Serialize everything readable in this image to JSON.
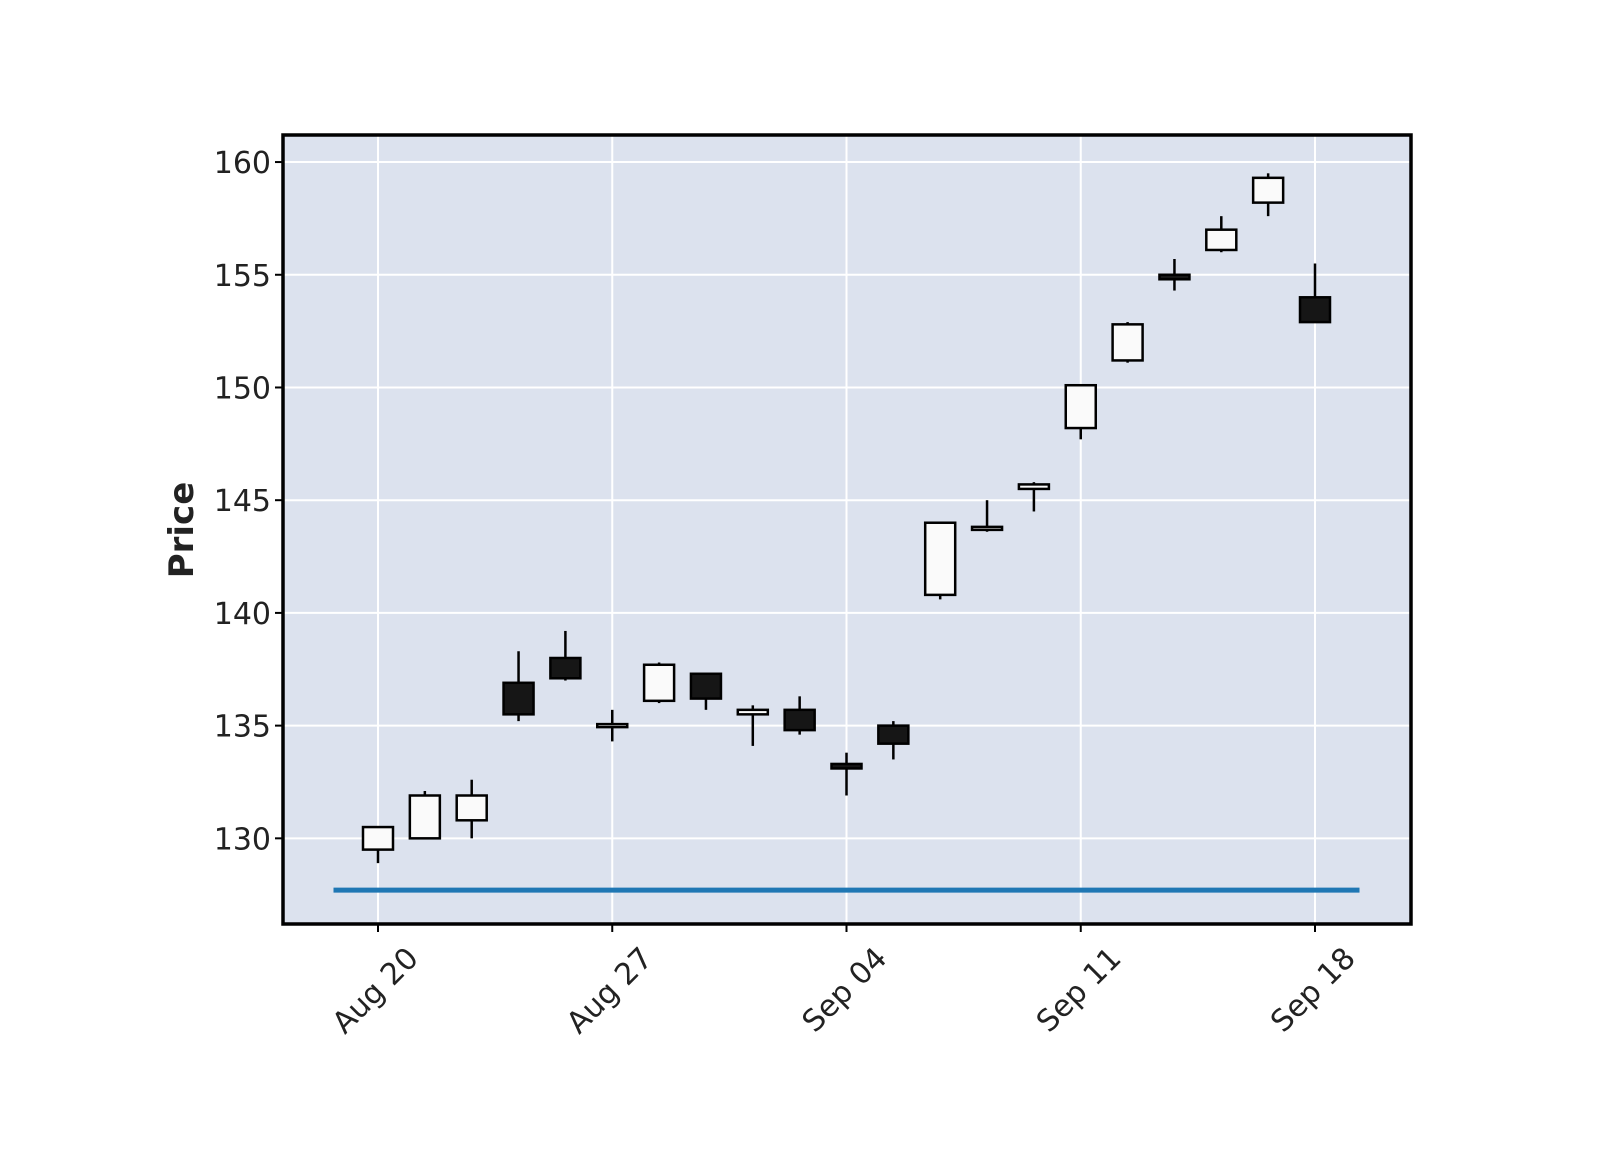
{
  "chart_data": {
    "type": "candlestick",
    "ylabel": "Price",
    "ylim": [
      126.2,
      161.2
    ],
    "yticks": [
      130,
      135,
      140,
      145,
      150,
      155,
      160
    ],
    "xticks": [
      {
        "date": "2023-08-20",
        "label": "Aug 20"
      },
      {
        "date": "2023-08-27",
        "label": "Aug 27"
      },
      {
        "date": "2023-09-04",
        "label": "Sep 04"
      },
      {
        "date": "2023-09-11",
        "label": "Sep 11"
      },
      {
        "date": "2023-09-18",
        "label": "Sep 18"
      }
    ],
    "grid": true,
    "series": [
      {
        "date": "2023-08-20",
        "open": 129.5,
        "high": 130.5,
        "low": 128.9,
        "close": 130.5
      },
      {
        "date": "2023-08-21",
        "open": 130.0,
        "high": 132.1,
        "low": 130.0,
        "close": 131.9
      },
      {
        "date": "2023-08-22",
        "open": 130.8,
        "high": 132.6,
        "low": 130.0,
        "close": 131.9
      },
      {
        "date": "2023-08-23",
        "open": 136.9,
        "high": 138.3,
        "low": 135.2,
        "close": 135.5
      },
      {
        "date": "2023-08-24",
        "open": 138.0,
        "high": 139.2,
        "low": 137.0,
        "close": 137.1
      },
      {
        "date": "2023-08-27",
        "open": 135.0,
        "high": 135.7,
        "low": 134.3,
        "close": 135.0
      },
      {
        "date": "2023-08-28",
        "open": 136.1,
        "high": 137.8,
        "low": 136.0,
        "close": 137.7
      },
      {
        "date": "2023-08-29",
        "open": 137.3,
        "high": 137.3,
        "low": 135.7,
        "close": 136.2
      },
      {
        "date": "2023-08-30",
        "open": 135.5,
        "high": 135.9,
        "low": 134.1,
        "close": 135.7
      },
      {
        "date": "2023-08-31",
        "open": 135.7,
        "high": 136.3,
        "low": 134.6,
        "close": 134.8
      },
      {
        "date": "2023-09-04",
        "open": 133.3,
        "high": 133.8,
        "low": 131.9,
        "close": 133.1
      },
      {
        "date": "2023-09-05",
        "open": 135.0,
        "high": 135.2,
        "low": 133.5,
        "close": 134.2
      },
      {
        "date": "2023-09-06",
        "open": 140.8,
        "high": 144.0,
        "low": 140.6,
        "close": 144.0
      },
      {
        "date": "2023-09-07",
        "open": 143.7,
        "high": 145.0,
        "low": 143.6,
        "close": 143.8
      },
      {
        "date": "2023-09-08",
        "open": 145.5,
        "high": 145.8,
        "low": 144.5,
        "close": 145.7
      },
      {
        "date": "2023-09-11",
        "open": 148.2,
        "high": 150.1,
        "low": 147.7,
        "close": 150.1
      },
      {
        "date": "2023-09-12",
        "open": 151.2,
        "high": 152.9,
        "low": 151.1,
        "close": 152.8
      },
      {
        "date": "2023-09-13",
        "open": 155.0,
        "high": 155.7,
        "low": 154.3,
        "close": 154.8
      },
      {
        "date": "2023-09-14",
        "open": 156.1,
        "high": 157.6,
        "low": 156.0,
        "close": 157.0
      },
      {
        "date": "2023-09-15",
        "open": 158.2,
        "high": 159.5,
        "low": 157.6,
        "close": 159.3
      },
      {
        "date": "2023-09-18",
        "open": 154.0,
        "high": 155.5,
        "low": 152.9,
        "close": 152.9
      }
    ],
    "reference_line": {
      "value": 127.7,
      "color": "#1f77b4"
    }
  },
  "colors": {
    "plot_background": "#dce2ee",
    "grid": "#ffffff",
    "up_candle": "#fafafa",
    "down_candle": "#161616",
    "outline": "#000000"
  }
}
